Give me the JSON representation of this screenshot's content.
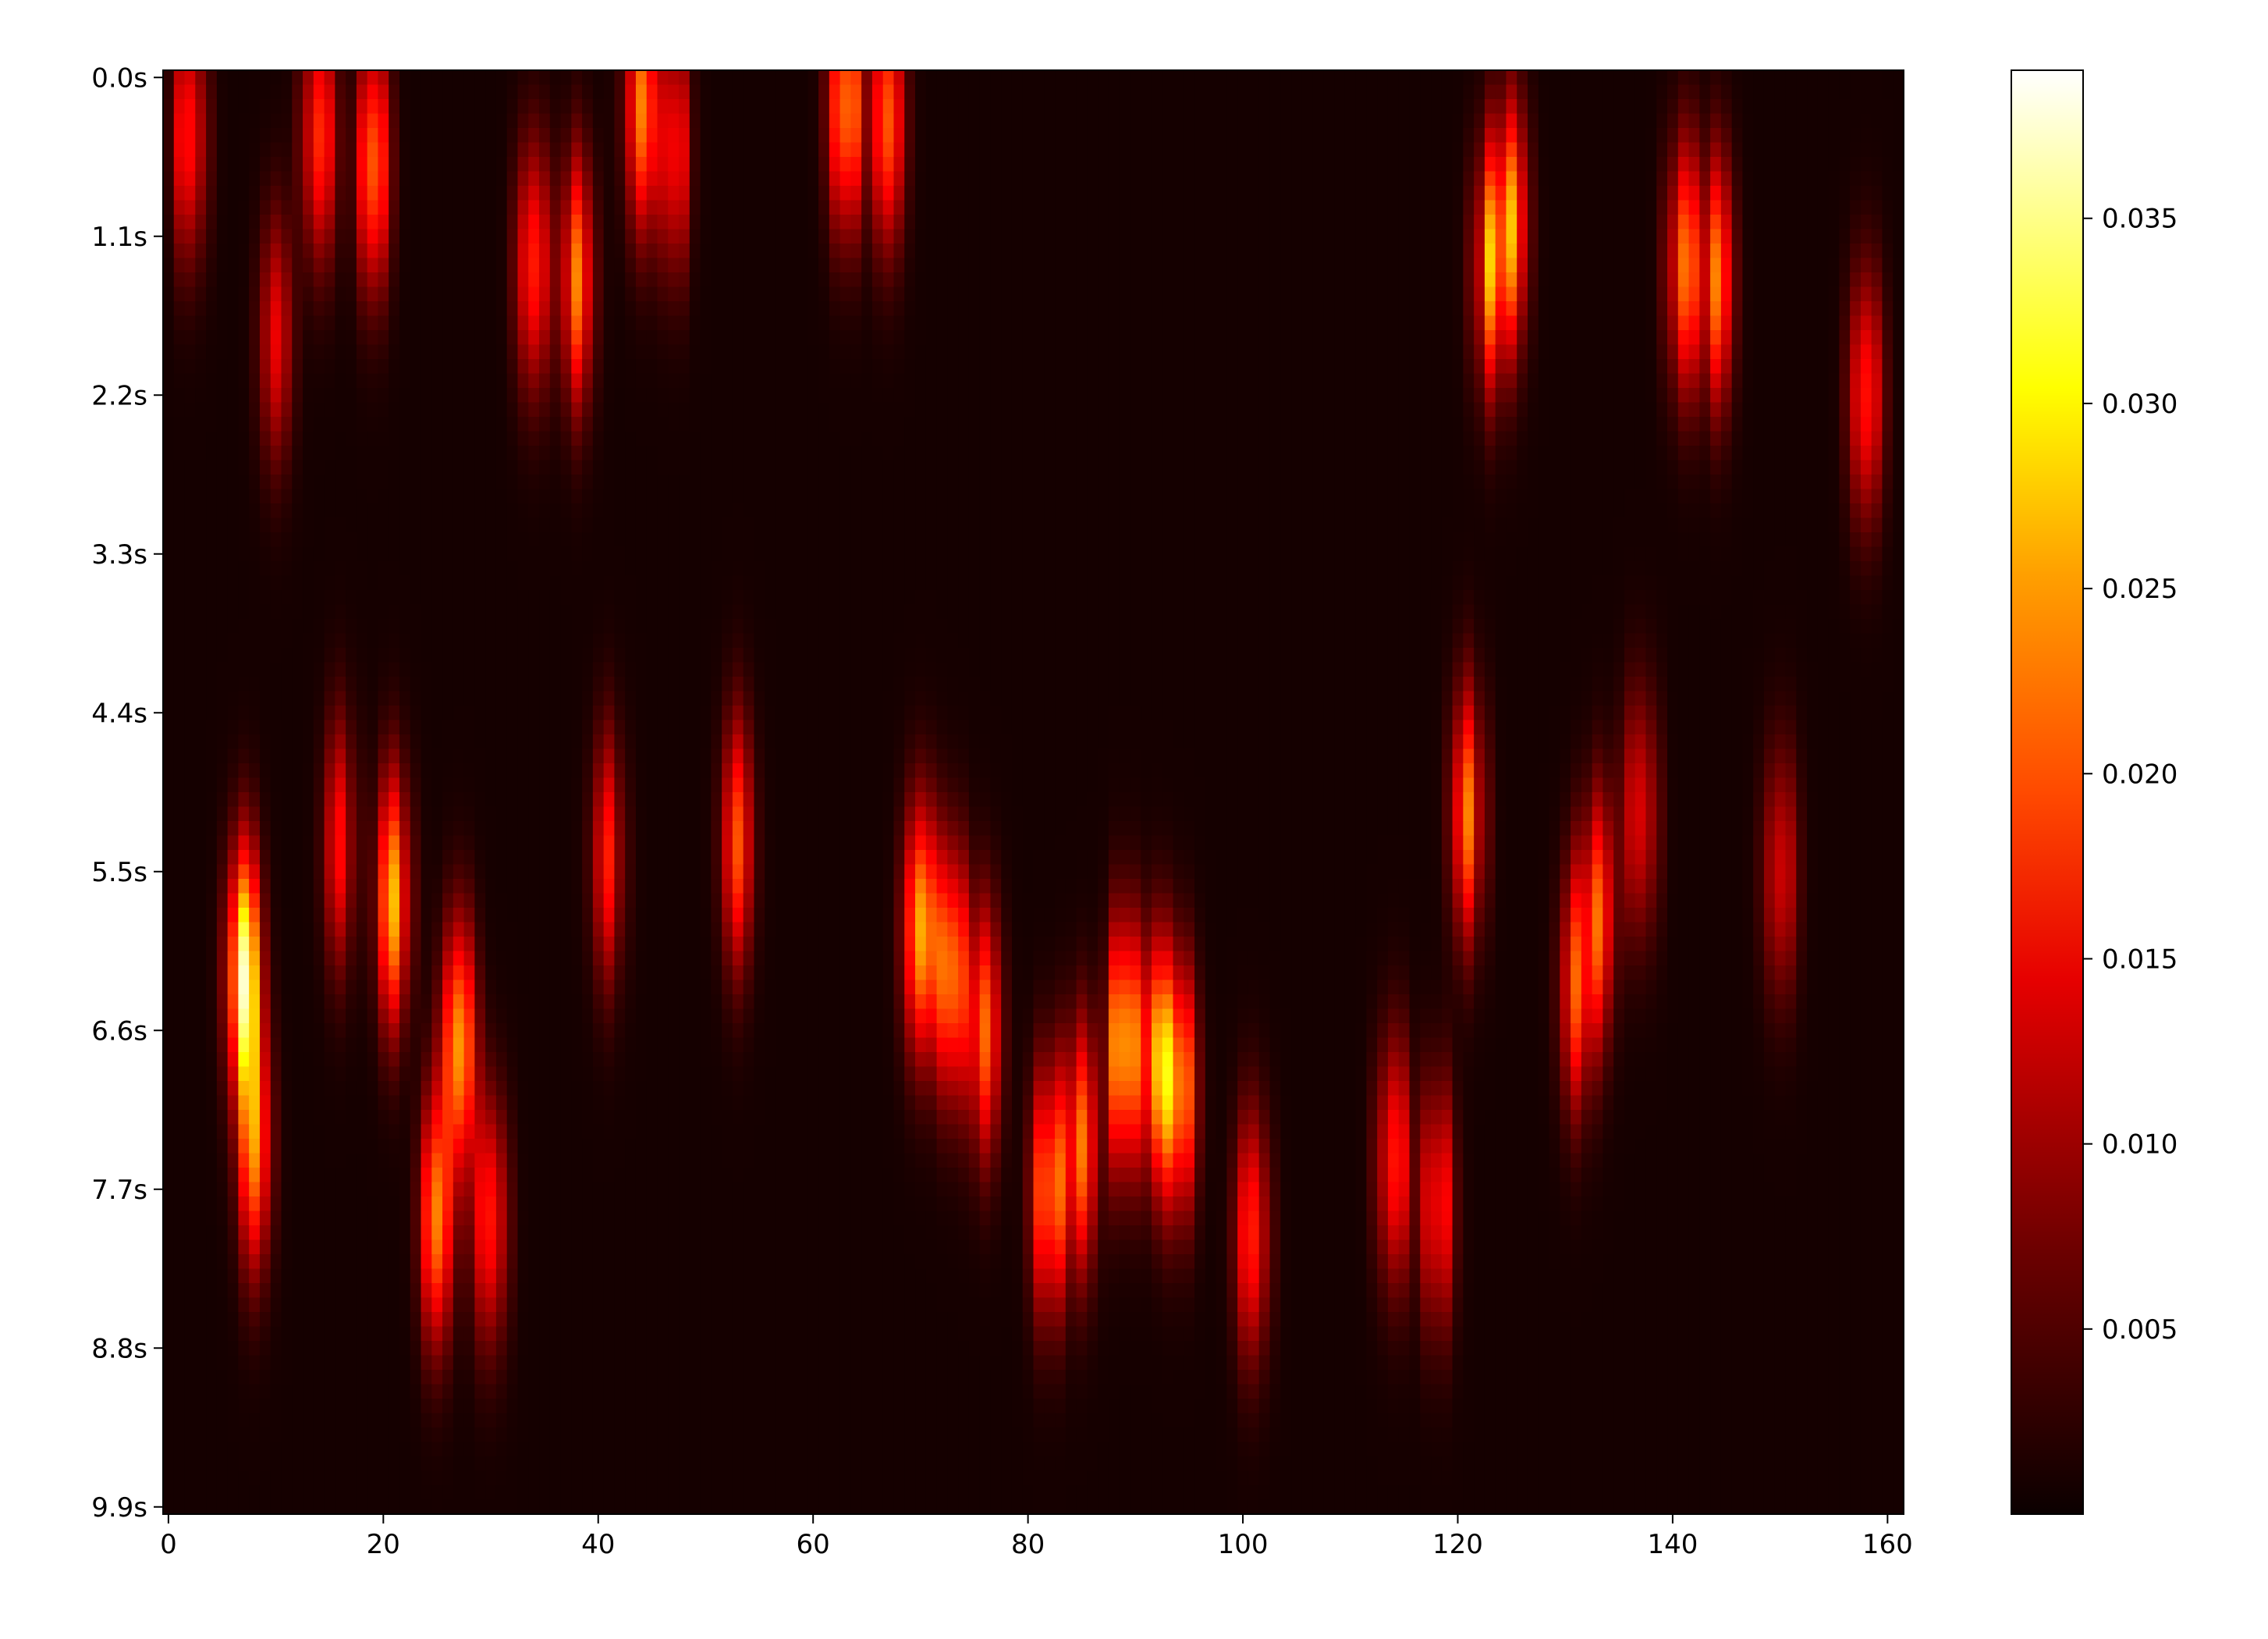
{
  "chart_data": {
    "type": "heatmap",
    "title": "",
    "xlabel": "",
    "ylabel": "",
    "colorbar_label": "",
    "colormap": "hot",
    "x_range": [
      0,
      162
    ],
    "x_ticks": [
      "0",
      "20",
      "40",
      "60",
      "80",
      "100",
      "120",
      "140",
      "160"
    ],
    "y_ticks": [
      "0.0s",
      "1.1s",
      "2.2s",
      "3.3s",
      "4.4s",
      "5.5s",
      "6.6s",
      "7.7s",
      "8.8s",
      "9.9s"
    ],
    "value_range": [
      0.0,
      0.039
    ],
    "colorbar_ticks": [
      "0.005",
      "0.010",
      "0.015",
      "0.020",
      "0.025",
      "0.030",
      "0.035"
    ],
    "colorbar_tick_values": [
      0.005,
      0.01,
      0.015,
      0.02,
      0.025,
      0.03,
      0.035
    ],
    "columns": 162,
    "rows": 100,
    "hotspots": [
      {
        "x": 2,
        "t": 0.4,
        "value": 0.02
      },
      {
        "x": 7,
        "t": 6.2,
        "value": 0.039
      },
      {
        "x": 8,
        "t": 7.4,
        "value": 0.023
      },
      {
        "x": 10,
        "t": 1.8,
        "value": 0.014
      },
      {
        "x": 14,
        "t": 0.4,
        "value": 0.022
      },
      {
        "x": 19,
        "t": 0.6,
        "value": 0.024
      },
      {
        "x": 16,
        "t": 5.3,
        "value": 0.016
      },
      {
        "x": 21,
        "t": 5.7,
        "value": 0.027
      },
      {
        "x": 27,
        "t": 6.7,
        "value": 0.027
      },
      {
        "x": 25,
        "t": 7.9,
        "value": 0.024
      },
      {
        "x": 30,
        "t": 7.9,
        "value": 0.02
      },
      {
        "x": 34,
        "t": 1.3,
        "value": 0.024
      },
      {
        "x": 38,
        "t": 1.4,
        "value": 0.022
      },
      {
        "x": 41,
        "t": 5.4,
        "value": 0.016
      },
      {
        "x": 44,
        "t": 0.2,
        "value": 0.026
      },
      {
        "x": 47,
        "t": 0.5,
        "value": 0.019
      },
      {
        "x": 53,
        "t": 5.3,
        "value": 0.019
      },
      {
        "x": 63,
        "t": 0.2,
        "value": 0.029
      },
      {
        "x": 67,
        "t": 0.3,
        "value": 0.022
      },
      {
        "x": 70,
        "t": 5.9,
        "value": 0.03
      },
      {
        "x": 73,
        "t": 6.2,
        "value": 0.026
      },
      {
        "x": 76,
        "t": 6.6,
        "value": 0.024
      },
      {
        "x": 82,
        "t": 7.7,
        "value": 0.028
      },
      {
        "x": 85,
        "t": 7.4,
        "value": 0.028
      },
      {
        "x": 89,
        "t": 6.7,
        "value": 0.033
      },
      {
        "x": 92,
        "t": 6.8,
        "value": 0.028
      },
      {
        "x": 94,
        "t": 7.0,
        "value": 0.029
      },
      {
        "x": 101,
        "t": 8.0,
        "value": 0.022
      },
      {
        "x": 114,
        "t": 7.5,
        "value": 0.02
      },
      {
        "x": 118,
        "t": 7.8,
        "value": 0.021
      },
      {
        "x": 121,
        "t": 5.1,
        "value": 0.022
      },
      {
        "x": 123,
        "t": 1.3,
        "value": 0.024
      },
      {
        "x": 125,
        "t": 1.0,
        "value": 0.022
      },
      {
        "x": 131,
        "t": 6.3,
        "value": 0.022
      },
      {
        "x": 133,
        "t": 5.8,
        "value": 0.02
      },
      {
        "x": 137,
        "t": 5.1,
        "value": 0.019
      },
      {
        "x": 141,
        "t": 1.3,
        "value": 0.023
      },
      {
        "x": 144,
        "t": 1.4,
        "value": 0.022
      },
      {
        "x": 150,
        "t": 5.5,
        "value": 0.015
      },
      {
        "x": 158,
        "t": 2.2,
        "value": 0.02
      }
    ]
  }
}
